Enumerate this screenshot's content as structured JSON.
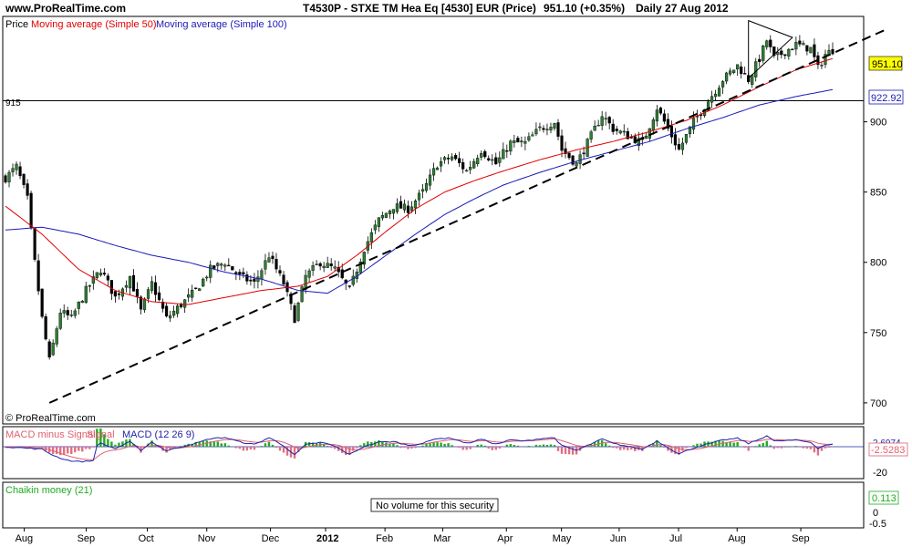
{
  "header": {
    "site": "www.ProRealTime.com",
    "instrument": "T4530P - STXE TM Hea Eq [4530] EUR (Price)",
    "quote": "951.10 (+0.35%)",
    "period": "Daily  27 Aug 2012"
  },
  "colors": {
    "price_up": "#2e7d32",
    "price_down": "#000000",
    "ma50": "#e00000",
    "ma100": "#1a1ab8",
    "last_price_badge": "#ffff00",
    "macd_line": "#2222aa",
    "signal_line": "#e06070",
    "hist_pos": "#22aa22",
    "hist_neg": "#e07080",
    "chaikin": "#22aa22"
  },
  "panels": {
    "price": {
      "legend": {
        "price": "Price",
        "ma50": "Moving average (Simple 50)",
        "ma100": "Moving average (Simple 100)"
      },
      "horizontal_line_label": "915",
      "copyright": "© ProRealTime.com",
      "last_price": "951.10",
      "ma100_value": "922.92"
    },
    "macd": {
      "legend": {
        "hist": "MACD minus Signal",
        "signal": "Signal",
        "macd": "MACD (12 26 9)"
      },
      "value_top": "2.6974",
      "value_main": "-2.5283",
      "tick_minus20": "-20"
    },
    "chaikin": {
      "legend": "Chaikin money (21)",
      "note": "No volume for this security",
      "value": "0.113",
      "tick_0": "0",
      "tick_minus05": "-0.5"
    }
  },
  "chart_data": {
    "type": "candlestick",
    "y_ticks": [
      700,
      750,
      800,
      850,
      900
    ],
    "ylim": [
      685,
      975
    ],
    "horizontal_line": 915,
    "x_labels": [
      "Aug",
      "Sep",
      "Oct",
      "Nov",
      "Dec",
      "2012",
      "Feb",
      "Mar",
      "Apr",
      "May",
      "Jun",
      "Jul",
      "Aug",
      "Sep"
    ],
    "price_anchors": [
      [
        0,
        860
      ],
      [
        3,
        868
      ],
      [
        6,
        845
      ],
      [
        8,
        800
      ],
      [
        10,
        760
      ],
      [
        12,
        730
      ],
      [
        15,
        765
      ],
      [
        18,
        760
      ],
      [
        22,
        780
      ],
      [
        26,
        795
      ],
      [
        30,
        775
      ],
      [
        34,
        790
      ],
      [
        37,
        765
      ],
      [
        40,
        785
      ],
      [
        44,
        760
      ],
      [
        48,
        770
      ],
      [
        52,
        780
      ],
      [
        56,
        795
      ],
      [
        60,
        800
      ],
      [
        64,
        790
      ],
      [
        68,
        785
      ],
      [
        72,
        805
      ],
      [
        76,
        785
      ],
      [
        79,
        760
      ],
      [
        82,
        790
      ],
      [
        86,
        800
      ],
      [
        90,
        795
      ],
      [
        94,
        780
      ],
      [
        98,
        810
      ],
      [
        102,
        830
      ],
      [
        106,
        840
      ],
      [
        110,
        838
      ],
      [
        114,
        850
      ],
      [
        118,
        870
      ],
      [
        122,
        875
      ],
      [
        126,
        865
      ],
      [
        130,
        880
      ],
      [
        134,
        870
      ],
      [
        138,
        885
      ],
      [
        142,
        885
      ],
      [
        146,
        895
      ],
      [
        150,
        900
      ],
      [
        152,
        880
      ],
      [
        156,
        870
      ],
      [
        160,
        890
      ],
      [
        163,
        905
      ],
      [
        166,
        895
      ],
      [
        170,
        890
      ],
      [
        174,
        885
      ],
      [
        178,
        910
      ],
      [
        182,
        890
      ],
      [
        184,
        880
      ],
      [
        188,
        900
      ],
      [
        192,
        915
      ],
      [
        196,
        930
      ],
      [
        200,
        940
      ],
      [
        203,
        930
      ],
      [
        206,
        945
      ],
      [
        208,
        958
      ],
      [
        210,
        945
      ],
      [
        213,
        950
      ],
      [
        216,
        955
      ],
      [
        220,
        952
      ],
      [
        222,
        938
      ],
      [
        224,
        948
      ],
      [
        226,
        951.1
      ]
    ],
    "ma50_anchors": [
      [
        0,
        840
      ],
      [
        10,
        820
      ],
      [
        20,
        795
      ],
      [
        30,
        780
      ],
      [
        40,
        772
      ],
      [
        50,
        770
      ],
      [
        60,
        775
      ],
      [
        70,
        780
      ],
      [
        80,
        783
      ],
      [
        88,
        790
      ],
      [
        96,
        805
      ],
      [
        104,
        822
      ],
      [
        112,
        838
      ],
      [
        120,
        850
      ],
      [
        128,
        858
      ],
      [
        136,
        865
      ],
      [
        146,
        873
      ],
      [
        156,
        880
      ],
      [
        166,
        886
      ],
      [
        176,
        893
      ],
      [
        186,
        901
      ],
      [
        196,
        912
      ],
      [
        206,
        925
      ],
      [
        216,
        937
      ],
      [
        226,
        945
      ]
    ],
    "ma100_anchors": [
      [
        0,
        823
      ],
      [
        10,
        825
      ],
      [
        20,
        820
      ],
      [
        30,
        812
      ],
      [
        40,
        805
      ],
      [
        50,
        800
      ],
      [
        60,
        793
      ],
      [
        70,
        788
      ],
      [
        80,
        780
      ],
      [
        88,
        778
      ],
      [
        96,
        790
      ],
      [
        104,
        805
      ],
      [
        112,
        820
      ],
      [
        120,
        834
      ],
      [
        128,
        845
      ],
      [
        136,
        855
      ],
      [
        146,
        864
      ],
      [
        156,
        872
      ],
      [
        166,
        879
      ],
      [
        176,
        886
      ],
      [
        186,
        895
      ],
      [
        196,
        903
      ],
      [
        206,
        912
      ],
      [
        216,
        918
      ],
      [
        226,
        922.92
      ]
    ],
    "trendline": [
      [
        12,
        700
      ],
      [
        240,
        965
      ]
    ],
    "triangle": [
      [
        203,
        972
      ],
      [
        215,
        960
      ],
      [
        203,
        931
      ]
    ],
    "bars": 227
  }
}
